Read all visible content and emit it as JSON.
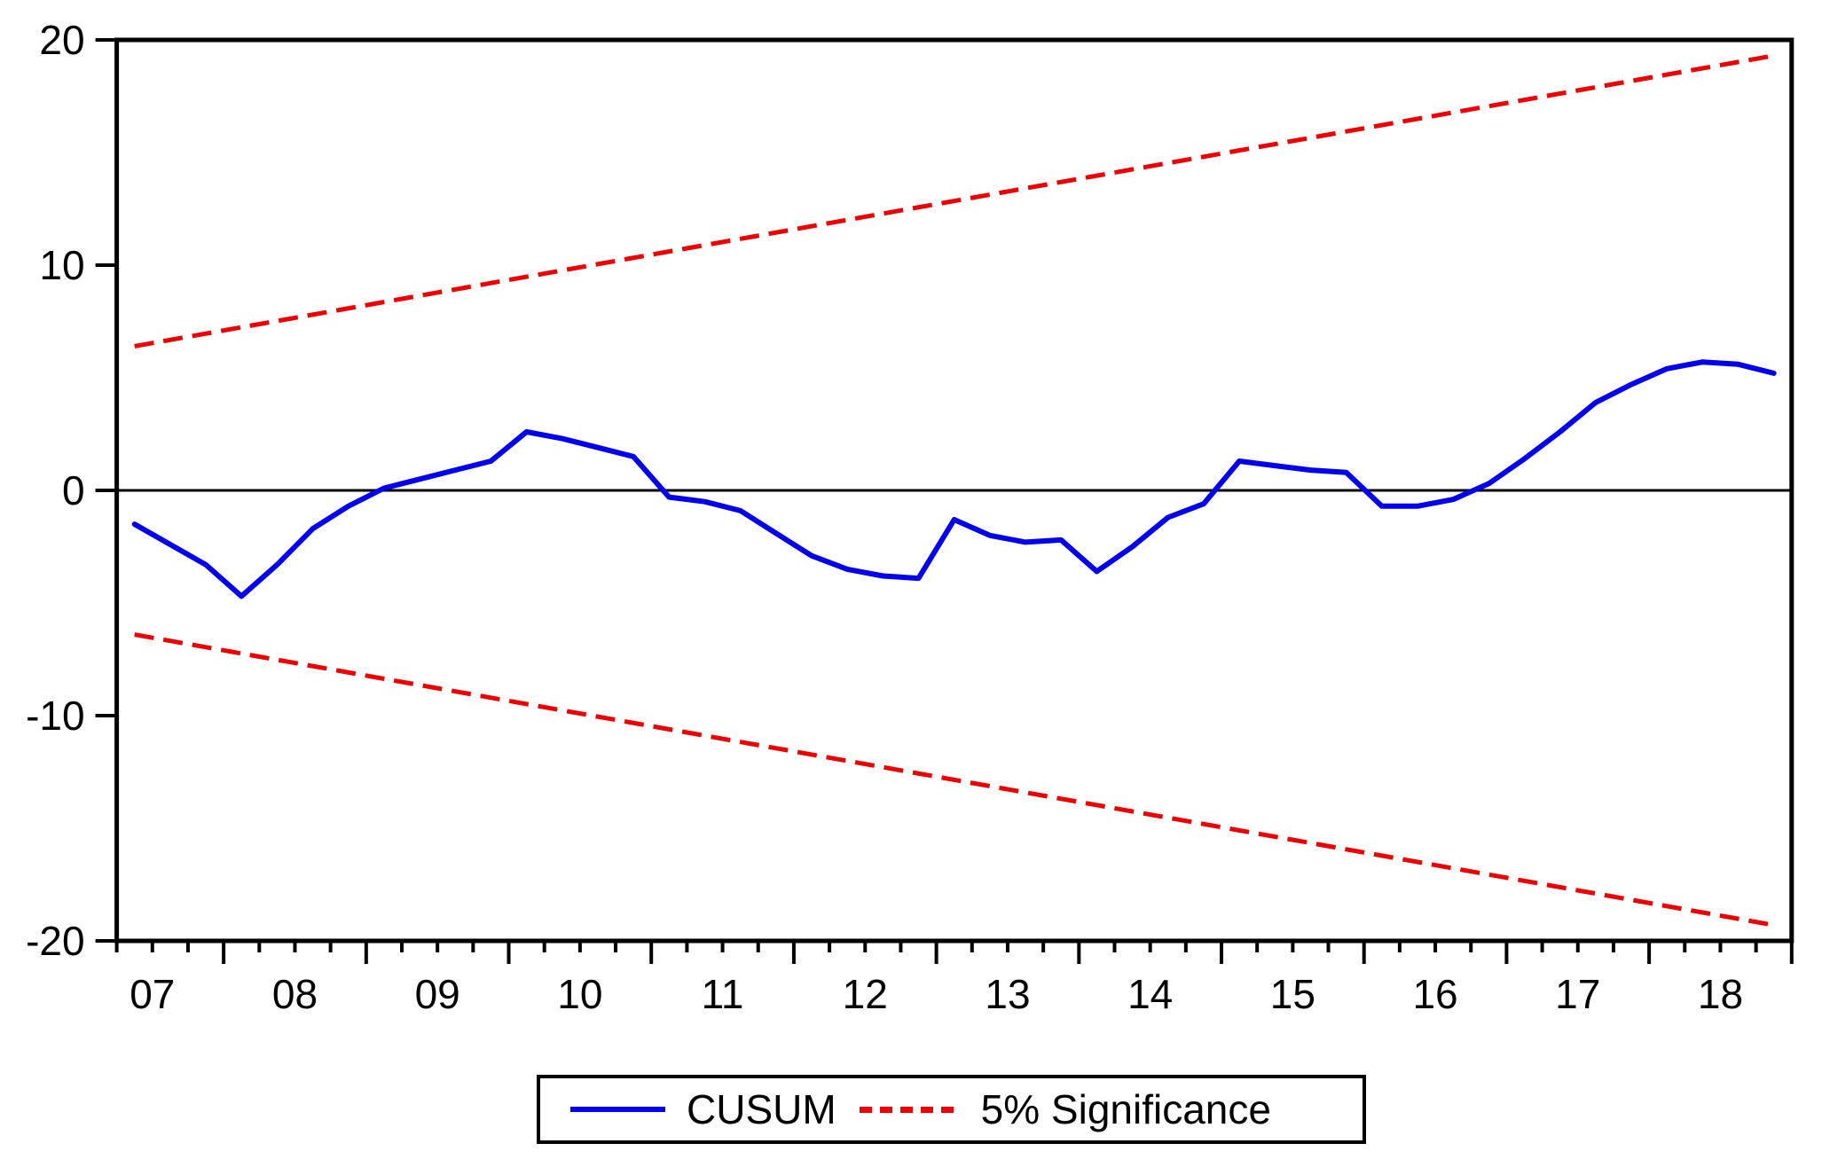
{
  "chart_data": {
    "type": "line",
    "title": "",
    "description": "CUSUM recursive-residual stability test plot with 5% significance bounds",
    "x_axis": {
      "tick_labels": [
        "07",
        "08",
        "09",
        "10",
        "11",
        "12",
        "13",
        "14",
        "15",
        "16",
        "17",
        "18"
      ],
      "start_year_fraction": 2007.25,
      "end_year_fraction": 2019.0,
      "minor_tick_unit": "quarter",
      "grid": false
    },
    "y_axis": {
      "ticks": [
        20,
        10,
        0,
        -10,
        -20
      ],
      "range": [
        -20,
        20
      ],
      "zero_line": true,
      "grid": false
    },
    "categories": [
      "2007Q2",
      "2007Q3",
      "2007Q4",
      "2008Q1",
      "2008Q2",
      "2008Q3",
      "2008Q4",
      "2009Q1",
      "2009Q2",
      "2009Q3",
      "2009Q4",
      "2010Q1",
      "2010Q2",
      "2010Q3",
      "2010Q4",
      "2011Q1",
      "2011Q2",
      "2011Q3",
      "2011Q4",
      "2012Q1",
      "2012Q2",
      "2012Q3",
      "2012Q4",
      "2013Q1",
      "2013Q2",
      "2013Q3",
      "2013Q4",
      "2014Q1",
      "2014Q2",
      "2014Q3",
      "2014Q4",
      "2015Q1",
      "2015Q2",
      "2015Q3",
      "2015Q4",
      "2016Q1",
      "2016Q2",
      "2016Q3",
      "2016Q4",
      "2017Q1",
      "2017Q2",
      "2017Q3",
      "2017Q4",
      "2018Q1",
      "2018Q2",
      "2018Q3",
      "2018Q4"
    ],
    "series": [
      {
        "name": "CUSUM",
        "color": "#0000ee",
        "style": "solid",
        "values": [
          -1.5,
          -2.4,
          -3.3,
          -4.7,
          -3.3,
          -1.7,
          -0.7,
          0.1,
          0.5,
          0.9,
          1.3,
          2.6,
          2.3,
          1.9,
          1.5,
          -0.3,
          -0.5,
          -0.9,
          -1.9,
          -2.9,
          -3.5,
          -3.8,
          -3.9,
          -1.3,
          -2.0,
          -2.3,
          -2.2,
          -3.6,
          -2.5,
          -1.2,
          -0.6,
          1.3,
          1.1,
          0.9,
          0.8,
          -0.7,
          -0.7,
          -0.4,
          0.3,
          1.4,
          2.6,
          3.9,
          4.7,
          5.4,
          5.7,
          5.6,
          5.2
        ]
      },
      {
        "name": "5% Significance (upper bound)",
        "color": "#ee0000",
        "style": "dashed",
        "linear_endpoints": [
          6.4,
          19.3
        ]
      },
      {
        "name": "5% Significance (lower bound)",
        "color": "#ee0000",
        "style": "dashed",
        "linear_endpoints": [
          -6.4,
          -19.3
        ]
      }
    ],
    "legend_position": "bottom"
  },
  "legend": {
    "items": [
      {
        "label": "CUSUM",
        "color": "#0000ee",
        "style": "solid"
      },
      {
        "label": "5% Significance",
        "color": "#ee0000",
        "style": "dashed"
      }
    ]
  },
  "colors": {
    "cusum_line": "#0000ee",
    "significance_line": "#ee0000",
    "axis": "#000000",
    "background": "#ffffff"
  }
}
